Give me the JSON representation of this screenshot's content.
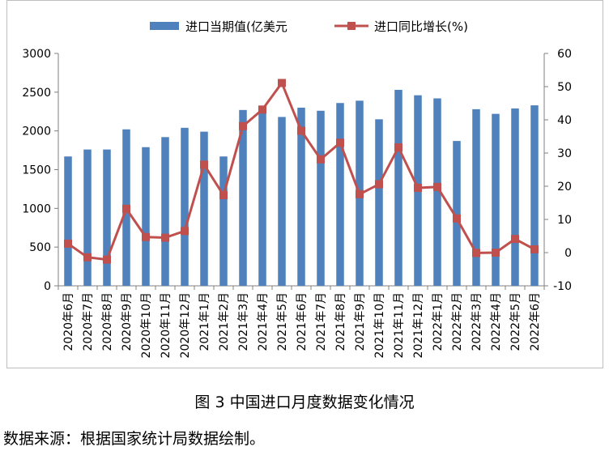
{
  "chart_data": {
    "type": "bar+line",
    "categories": [
      "2020年6月",
      "2020年7月",
      "2020年8月",
      "2020年9月",
      "2020年10月",
      "2020年11月",
      "2020年12月",
      "2021年1月",
      "2021年2月",
      "2021年3月",
      "2021年4月",
      "2021年5月",
      "2021年6月",
      "2021年7月",
      "2021年8月",
      "2021年9月",
      "2021年10月",
      "2021年11月",
      "2021年12月",
      "2022年1月",
      "2022年2月",
      "2022年3月",
      "2022年4月",
      "2022年5月",
      "2022年6月"
    ],
    "series": [
      {
        "name": "进口当期值(亿美元",
        "type": "bar",
        "axis": "left",
        "color": "#4f81bd",
        "values": [
          1670,
          1760,
          1760,
          2020,
          1790,
          1920,
          2040,
          1990,
          1670,
          2270,
          2250,
          2180,
          2300,
          2260,
          2360,
          2390,
          2150,
          2530,
          2460,
          2420,
          1870,
          2280,
          2220,
          2290,
          2330
        ]
      },
      {
        "name": "进口同比增长(%)",
        "type": "line",
        "axis": "right",
        "color": "#c0504d",
        "values": [
          2.7,
          -1.4,
          -2.1,
          13.2,
          4.7,
          4.5,
          6.5,
          26.5,
          17.3,
          38.1,
          43.1,
          51.1,
          36.7,
          28.1,
          33.1,
          17.6,
          20.6,
          31.7,
          19.5,
          19.8,
          10.3,
          -0.1,
          0.0,
          4.1,
          1.0
        ]
      }
    ],
    "left_axis": {
      "min": 0,
      "max": 3000,
      "ticks": [
        "0",
        "500",
        "1000",
        "1500",
        "2000",
        "2500",
        "3000"
      ]
    },
    "right_axis": {
      "min": -10,
      "max": 60,
      "ticks": [
        "-10",
        "0",
        "10",
        "20",
        "30",
        "40",
        "50",
        "60"
      ]
    },
    "legend": {
      "position": "top",
      "bar_label": "进口当期值(亿美元",
      "line_label": "进口同比增长(%)"
    }
  },
  "caption": "图 3 中国进口月度数据变化情况",
  "source": "数据来源：根据国家统计局数据绘制。"
}
